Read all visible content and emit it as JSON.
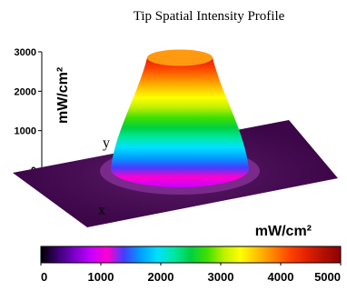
{
  "chart_data": {
    "type": "surface",
    "title": "Tip Spatial Intensity Profile",
    "zlabel": "mW/cm²",
    "z_ticks": [
      0,
      1000,
      2000,
      3000
    ],
    "zlim": [
      0,
      3000
    ],
    "x_axis_label": "x",
    "y_axis_label": "y",
    "profile": {
      "shape": "flat-top circular spot",
      "plateau_intensity": 2850,
      "background_intensity": 0
    },
    "colorbar": {
      "label": "mW/cm²",
      "range": [
        0,
        5000
      ],
      "ticks": [
        0,
        1000,
        2000,
        3000,
        4000,
        5000
      ],
      "colors": [
        "#000000",
        "#3a0070",
        "#7a00c8",
        "#c400ff",
        "#ff00d0",
        "#4040ff",
        "#00a0ff",
        "#00e0ff",
        "#00e8a0",
        "#00d040",
        "#40e000",
        "#c0f000",
        "#ffff00",
        "#ffc000",
        "#ff8000",
        "#ff4000",
        "#e02000",
        "#b01000",
        "#900000"
      ]
    },
    "floor_color": "#3c0648",
    "grid": false,
    "legend": "none"
  }
}
